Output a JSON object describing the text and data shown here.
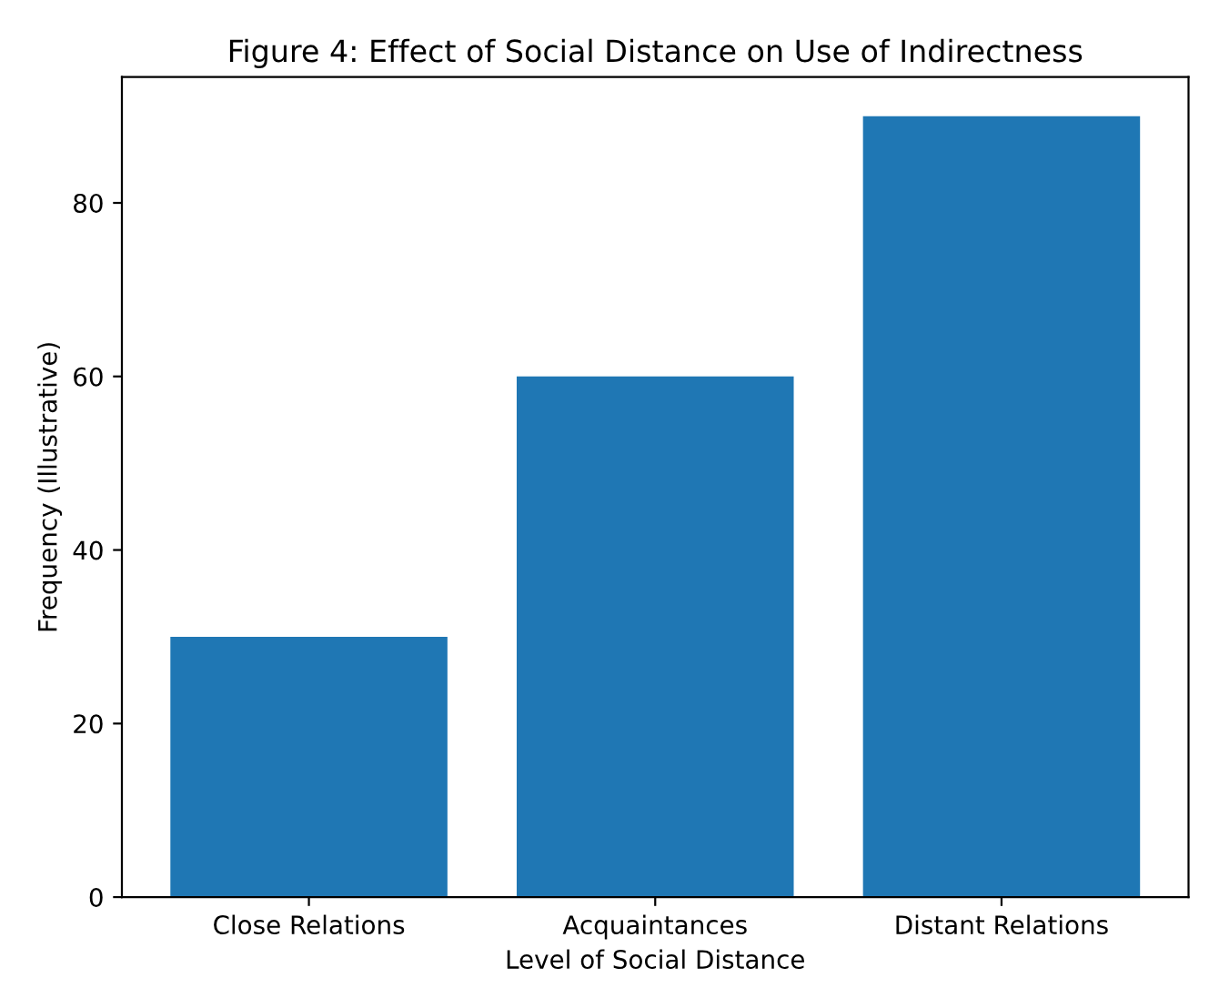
{
  "chart_data": {
    "type": "bar",
    "title": "Figure 4: Effect of Social Distance on Use of Indirectness",
    "xlabel": "Level of Social Distance",
    "ylabel": "Frequency (Illustrative)",
    "categories": [
      "Close Relations",
      "Acquaintances",
      "Distant Relations"
    ],
    "values": [
      30,
      60,
      90
    ],
    "color": "#1f77b4",
    "ylim": [
      0,
      94.5
    ],
    "yticks": [
      0,
      20,
      40,
      60,
      80
    ],
    "grid": false
  }
}
